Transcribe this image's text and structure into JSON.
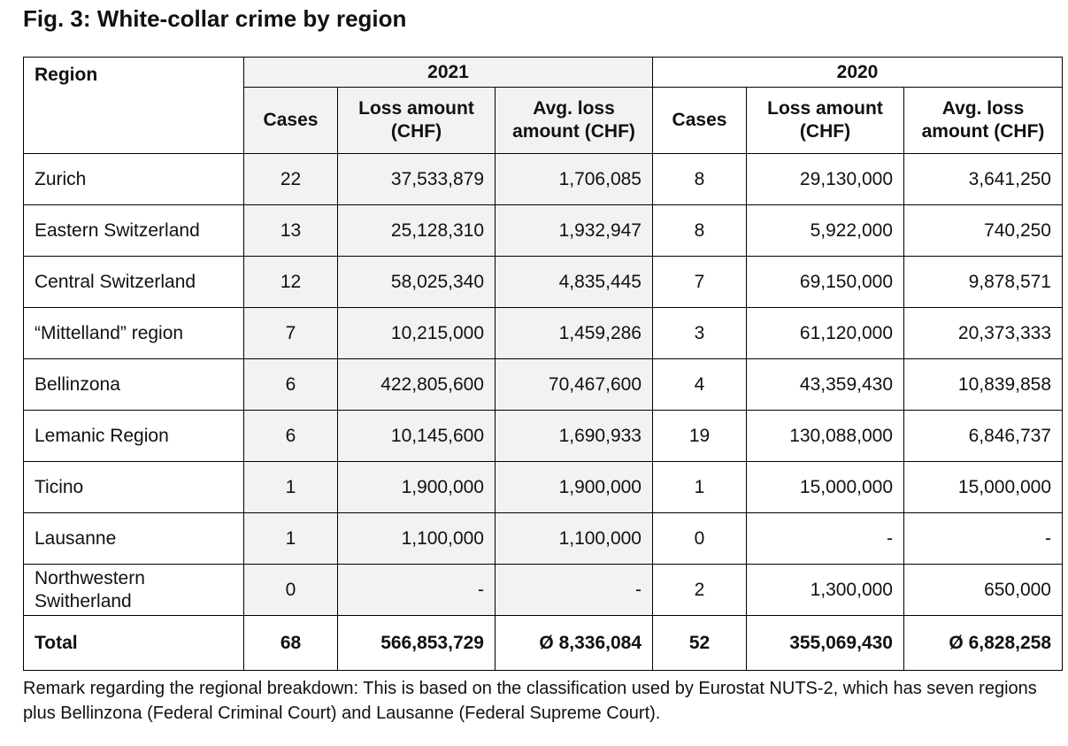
{
  "title": "Fig. 3: White-collar crime by region",
  "table": {
    "region_header": "Region",
    "years": [
      "2021",
      "2020"
    ],
    "columns": [
      [
        "Cases",
        "Loss amount (CHF)",
        "Avg. loss amount (CHF)"
      ],
      [
        "Cases",
        "Loss amount (CHF)",
        "Avg. loss amount (CHF)"
      ]
    ],
    "rows": [
      [
        "Zurich",
        "22",
        "37,533,879",
        "1,706,085",
        "8",
        "29,130,000",
        "3,641,250"
      ],
      [
        "Eastern Switzerland",
        "13",
        "25,128,310",
        "1,932,947",
        "8",
        "5,922,000",
        "740,250"
      ],
      [
        "Central Switzerland",
        "12",
        "58,025,340",
        "4,835,445",
        "7",
        "69,150,000",
        "9,878,571"
      ],
      [
        "“Mittelland” region",
        "7",
        "10,215,000",
        "1,459,286",
        "3",
        "61,120,000",
        "20,373,333"
      ],
      [
        "Bellinzona",
        "6",
        "422,805,600",
        "70,467,600",
        "4",
        "43,359,430",
        "10,839,858"
      ],
      [
        "Lemanic Region",
        "6",
        "10,145,600",
        "1,690,933",
        "19",
        "130,088,000",
        "6,846,737"
      ],
      [
        "Ticino",
        "1",
        "1,900,000",
        "1,900,000",
        "1",
        "15,000,000",
        "15,000,000"
      ],
      [
        "Lausanne",
        "1",
        "1,100,000",
        "1,100,000",
        "0",
        "-",
        "-"
      ],
      [
        "Northwestern Switherland",
        "0",
        "-",
        "-",
        "2",
        "1,300,000",
        "650,000"
      ]
    ],
    "total": [
      "Total",
      "68",
      "566,853,729",
      "Ø 8,336,084",
      "52",
      "355,069,430",
      "Ø 6,828,258"
    ]
  },
  "footnote": "Remark regarding the regional breakdown: This is based on the classification used by Eurostat NUTS-2, which has seven regions plus Bellinzona (Federal Criminal Court) and Lausanne (Federal Supreme Court)."
}
